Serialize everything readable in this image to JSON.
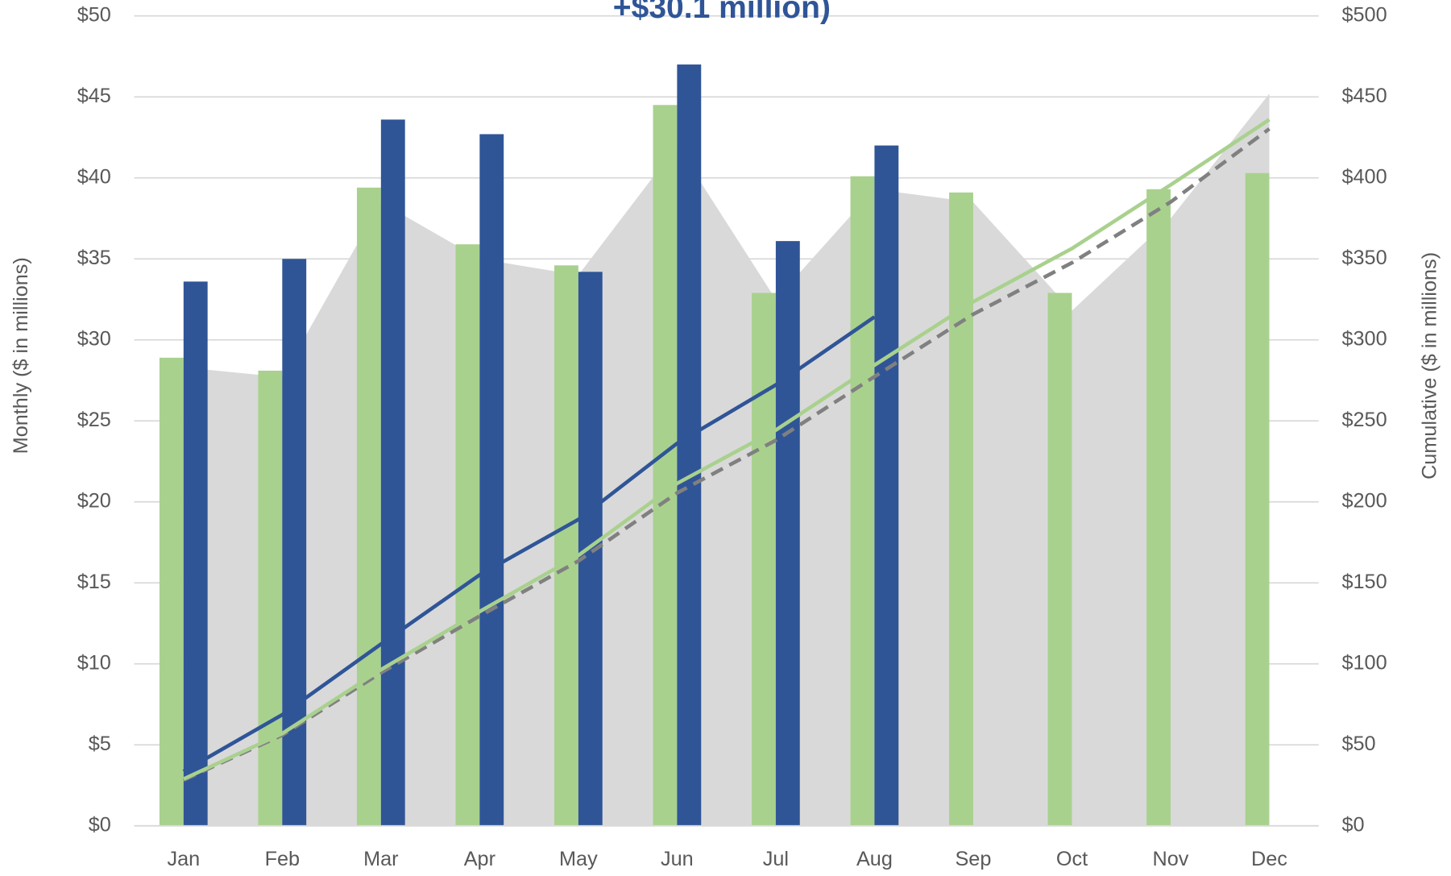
{
  "chart_data": {
    "type": "combo",
    "annotation": "+$30.1 million)",
    "ylabel": "Monthly ($ in millions)",
    "y2label": "Cumulative ($ in millions)",
    "categories": [
      "Jan",
      "Feb",
      "Mar",
      "Apr",
      "May",
      "Jun",
      "Jul",
      "Aug",
      "Sep",
      "Oct",
      "Nov",
      "Dec"
    ],
    "ylim": [
      0,
      50
    ],
    "yticks": [
      {
        "value": 0,
        "label": "$0"
      },
      {
        "value": 5,
        "label": "$5"
      },
      {
        "value": 10,
        "label": "$10"
      },
      {
        "value": 15,
        "label": "$15"
      },
      {
        "value": 20,
        "label": "$20"
      },
      {
        "value": 25,
        "label": "$25"
      },
      {
        "value": 30,
        "label": "$30"
      },
      {
        "value": 35,
        "label": "$35"
      },
      {
        "value": 40,
        "label": "$40"
      },
      {
        "value": 45,
        "label": "$45"
      },
      {
        "value": 50,
        "label": "$50"
      }
    ],
    "y2lim": [
      0,
      500
    ],
    "y2ticks": [
      {
        "value": 0,
        "label": "$0"
      },
      {
        "value": 50,
        "label": "$50"
      },
      {
        "value": 100,
        "label": "$100"
      },
      {
        "value": 150,
        "label": "$150"
      },
      {
        "value": 200,
        "label": "$200"
      },
      {
        "value": 250,
        "label": "$250"
      },
      {
        "value": 300,
        "label": "$300"
      },
      {
        "value": 350,
        "label": "$350"
      },
      {
        "value": 400,
        "label": "$400"
      },
      {
        "value": 450,
        "label": "$450"
      },
      {
        "value": 500,
        "label": "$500"
      }
    ],
    "grid": true,
    "series": [
      {
        "kind": "area",
        "color": "#d9d9d9",
        "values": [
          28.3,
          27.7,
          38.5,
          35.0,
          34.0,
          42.0,
          32.5,
          39.3,
          38.5,
          31.8,
          37.5,
          45.2
        ]
      },
      {
        "kind": "bar",
        "color": "#a9d18e",
        "values": [
          28.9,
          28.1,
          39.4,
          35.9,
          34.6,
          44.5,
          32.9,
          40.1,
          39.1,
          32.9,
          39.3,
          40.3
        ]
      },
      {
        "kind": "bar",
        "color": "#2f5597",
        "values": [
          33.6,
          35.0,
          43.6,
          42.7,
          34.2,
          47.0,
          36.1,
          42.0,
          null,
          null,
          null,
          null
        ]
      },
      {
        "kind": "line",
        "axis": "y2",
        "color": "#808080",
        "dashed": true,
        "values": [
          28.3,
          56.0,
          94.5,
          129.5,
          163.5,
          205.5,
          238.0,
          277.3,
          315.8,
          347.6,
          385.1,
          430.3
        ]
      },
      {
        "kind": "line",
        "axis": "y2",
        "color": "#a9d18e",
        "values": [
          28.9,
          57.0,
          96.4,
          132.3,
          166.9,
          211.4,
          244.3,
          284.4,
          323.5,
          356.4,
          395.7,
          436.0
        ]
      },
      {
        "kind": "line",
        "axis": "y2",
        "color": "#2f5597",
        "values": [
          33.6,
          68.6,
          112.2,
          154.9,
          189.1,
          236.1,
          272.2,
          314.2,
          null,
          null,
          null,
          null
        ]
      }
    ]
  }
}
